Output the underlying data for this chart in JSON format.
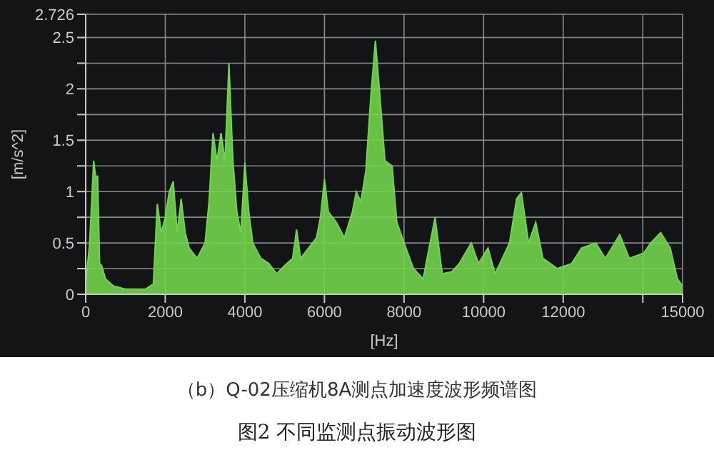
{
  "chart_data": {
    "type": "area",
    "title": "图2 不同监测点振动波形图",
    "subtitle": "（b）Q-02压缩机8A测点加速度波形频谱图",
    "xlabel": "[Hz]",
    "ylabel": "[m/s^2]",
    "x": [
      0,
      100,
      200,
      250,
      300,
      350,
      400,
      500,
      700,
      1000,
      1500,
      1700,
      1800,
      1900,
      2000,
      2100,
      2200,
      2300,
      2400,
      2500,
      2600,
      2800,
      3000,
      3100,
      3200,
      3300,
      3400,
      3500,
      3600,
      3700,
      3800,
      3900,
      4000,
      4100,
      4200,
      4400,
      4600,
      4800,
      5000,
      5200,
      5300,
      5400,
      5600,
      5800,
      5900,
      6000,
      6100,
      6300,
      6500,
      6700,
      6800,
      6915,
      7040,
      7160,
      7280,
      7400,
      7520,
      7700,
      7820,
      8000,
      8240,
      8480,
      8780,
      8960,
      9200,
      9390,
      9690,
      9870,
      10110,
      10290,
      10650,
      10830,
      10950,
      11130,
      11310,
      11490,
      11855,
      12215,
      12460,
      12820,
      13060,
      13420,
      13660,
      14020,
      14200,
      14450,
      14690,
      14870,
      15000
    ],
    "series": [
      {
        "color": "#72d34c",
        "values": [
          0.1,
          0.5,
          1.3,
          1.15,
          1.15,
          0.3,
          0.28,
          0.15,
          0.08,
          0.05,
          0.05,
          0.1,
          0.88,
          0.6,
          0.75,
          1.0,
          1.1,
          0.6,
          0.93,
          0.6,
          0.45,
          0.35,
          0.5,
          0.9,
          1.57,
          1.3,
          1.57,
          1.3,
          2.25,
          1.3,
          0.8,
          0.6,
          1.28,
          0.8,
          0.5,
          0.35,
          0.3,
          0.2,
          0.28,
          0.35,
          0.63,
          0.35,
          0.45,
          0.55,
          0.75,
          1.12,
          0.8,
          0.7,
          0.55,
          0.8,
          1.0,
          0.9,
          1.2,
          1.9,
          2.47,
          1.9,
          1.3,
          1.25,
          0.7,
          0.5,
          0.25,
          0.15,
          0.75,
          0.2,
          0.22,
          0.3,
          0.5,
          0.3,
          0.45,
          0.2,
          0.5,
          0.93,
          0.99,
          0.5,
          0.7,
          0.35,
          0.25,
          0.3,
          0.45,
          0.5,
          0.35,
          0.58,
          0.35,
          0.4,
          0.5,
          0.6,
          0.45,
          0.15,
          0.08
        ]
      }
    ],
    "xlim": [
      0,
      15000
    ],
    "xticks": [
      0,
      2000,
      4000,
      6000,
      8000,
      10000,
      12000,
      {
        "value": 14000,
        "label": null
      },
      15000
    ],
    "ylim": [
      0,
      2.726
    ],
    "yticks": [
      0,
      {
        "value": 0.25,
        "label": null
      },
      0.5,
      {
        "value": 0.75,
        "label": null
      },
      1,
      {
        "value": 1.25,
        "label": null
      },
      1.5,
      {
        "value": 1.75,
        "label": null
      },
      2,
      {
        "value": 2.25,
        "label": null
      },
      2.5,
      2.726
    ],
    "grid": true
  }
}
